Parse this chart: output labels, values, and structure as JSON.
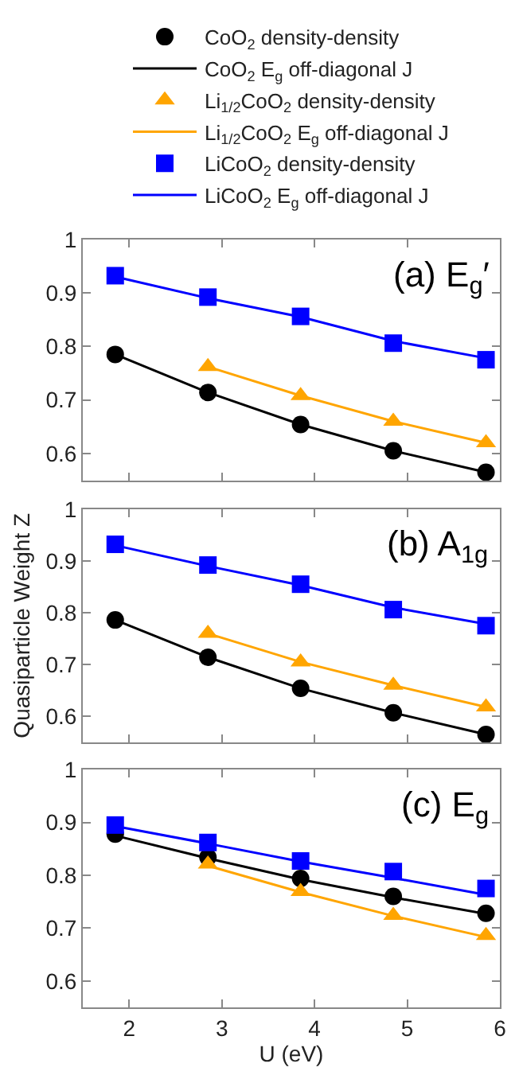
{
  "chart_data": [
    {
      "type": "line",
      "x": [
        1.85,
        2.85,
        3.85,
        4.85,
        5.85
      ],
      "xlim": [
        1.5,
        6
      ],
      "xticks": [
        2,
        3,
        4,
        5,
        6
      ],
      "ylim": [
        0.55,
        1
      ],
      "yticks": [
        0.6,
        0.7,
        0.8,
        0.9,
        1
      ],
      "tick_labels": "y",
      "legend": "top",
      "annotations": [
        "(a) E$_{g}$′"
      ],
      "series": [
        {
          "name": "CoO$_{2}$ density-density",
          "type": "scatter",
          "marker": "circle",
          "color": "#000000",
          "values": [
            0.785,
            0.714,
            0.654,
            0.605,
            0.565
          ]
        },
        {
          "name": "CoO$_{2}$ E$_{g}$ off-diagonal J",
          "color": "#000000",
          "values": [
            0.785,
            0.714,
            0.654,
            0.605,
            0.565
          ]
        },
        {
          "name": "Li$_{1/2}$CoO$_{2}$ density-density",
          "type": "scatter",
          "marker": "triangle",
          "color": "#ffa500",
          "values": [
            null,
            0.762,
            0.708,
            0.66,
            0.62
          ]
        },
        {
          "name": "Li$_{1/2}$CoO$_{2}$ E$_{g}$ off-diagonal J",
          "color": "#ffa500",
          "values": [
            null,
            0.762,
            0.708,
            0.66,
            0.62
          ]
        },
        {
          "name": "LiCoO$_{2}$ density-density",
          "type": "scatter",
          "marker": "square",
          "color": "#0000ff",
          "values": [
            0.932,
            0.892,
            0.856,
            0.806,
            0.775
          ]
        },
        {
          "name": "LiCoO$_{2}$ E$_{g}$ off-diagonal J",
          "color": "#0000ff",
          "values": [
            0.93,
            0.89,
            0.855,
            0.81,
            0.778
          ]
        }
      ]
    },
    {
      "type": "line",
      "x": [
        1.85,
        2.85,
        3.85,
        4.85,
        5.85
      ],
      "xlim": [
        1.5,
        6
      ],
      "xticks": [
        2,
        3,
        4,
        5,
        6
      ],
      "ylim": [
        0.55,
        1
      ],
      "yticks": [
        0.6,
        0.7,
        0.8,
        0.9,
        1
      ],
      "tick_labels": "y",
      "ylabel": "Quasiparticle Weight Z",
      "annotations": [
        "(b) A$_{1g}$"
      ],
      "series": [
        {
          "type": "scatter",
          "marker": "circle",
          "color": "#000000",
          "values": [
            0.786,
            0.714,
            0.654,
            0.607,
            0.565
          ]
        },
        {
          "color": "#000000",
          "values": [
            0.786,
            0.714,
            0.654,
            0.607,
            0.565
          ]
        },
        {
          "type": "scatter",
          "marker": "triangle",
          "color": "#ffa500",
          "values": [
            null,
            0.76,
            0.705,
            0.66,
            0.618
          ]
        },
        {
          "color": "#ffa500",
          "values": [
            null,
            0.76,
            0.705,
            0.66,
            0.618
          ]
        },
        {
          "type": "scatter",
          "marker": "square",
          "color": "#0000ff",
          "values": [
            0.932,
            0.892,
            0.855,
            0.806,
            0.775
          ]
        },
        {
          "color": "#0000ff",
          "values": [
            0.93,
            0.89,
            0.853,
            0.81,
            0.778
          ]
        }
      ]
    },
    {
      "type": "line",
      "x": [
        1.85,
        2.85,
        3.85,
        4.85,
        5.85
      ],
      "xlim": [
        1.5,
        6
      ],
      "xticks": [
        2,
        3,
        4,
        5,
        6
      ],
      "ylim": [
        0.55,
        1
      ],
      "yticks": [
        0.6,
        0.7,
        0.8,
        0.9,
        1
      ],
      "xlabel": "U (eV)",
      "annotations": [
        "(c) E$_{g}$"
      ],
      "series": [
        {
          "type": "scatter",
          "marker": "circle",
          "color": "#000000",
          "values": [
            0.878,
            0.834,
            0.794,
            0.76,
            0.728
          ]
        },
        {
          "color": "#000000",
          "values": [
            0.875,
            0.832,
            0.792,
            0.758,
            0.727
          ]
        },
        {
          "type": "scatter",
          "marker": "triangle",
          "color": "#ffa500",
          "values": [
            null,
            0.821,
            0.769,
            0.724,
            0.686
          ]
        },
        {
          "color": "#ffa500",
          "values": [
            null,
            0.818,
            0.768,
            0.723,
            0.683
          ]
        },
        {
          "type": "scatter",
          "marker": "square",
          "color": "#0000ff",
          "values": [
            0.895,
            0.862,
            0.827,
            0.807,
            0.775
          ]
        },
        {
          "color": "#0000ff",
          "values": [
            0.893,
            0.86,
            0.826,
            0.795,
            0.763
          ]
        }
      ]
    }
  ]
}
